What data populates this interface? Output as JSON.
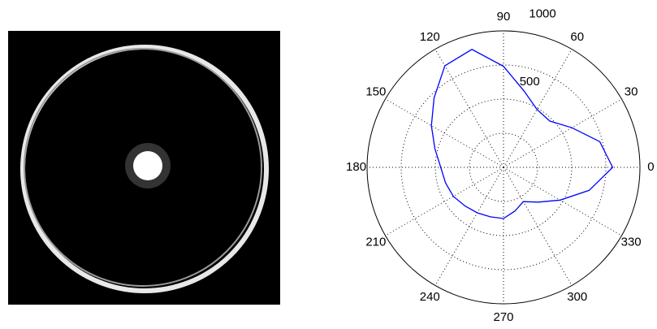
{
  "chart_data": {
    "type": "polar",
    "theta": [
      0,
      15,
      30,
      45,
      60,
      75,
      90,
      105,
      120,
      135,
      150,
      165,
      180,
      195,
      210,
      225,
      240,
      255,
      270,
      285,
      300,
      315,
      330,
      345
    ],
    "values": [
      800,
      730,
      580,
      480,
      490,
      580,
      740,
      895,
      860,
      720,
      610,
      520,
      460,
      440,
      425,
      400,
      385,
      375,
      375,
      330,
      290,
      360,
      480,
      650
    ],
    "color": "#0000ff",
    "rlim": [
      0,
      1000
    ],
    "rgrid": [
      250,
      500,
      750,
      1000
    ],
    "rticks": [
      500,
      1000
    ],
    "thetaticks": [
      0,
      30,
      60,
      90,
      120,
      150,
      180,
      210,
      240,
      270,
      300,
      330
    ]
  }
}
